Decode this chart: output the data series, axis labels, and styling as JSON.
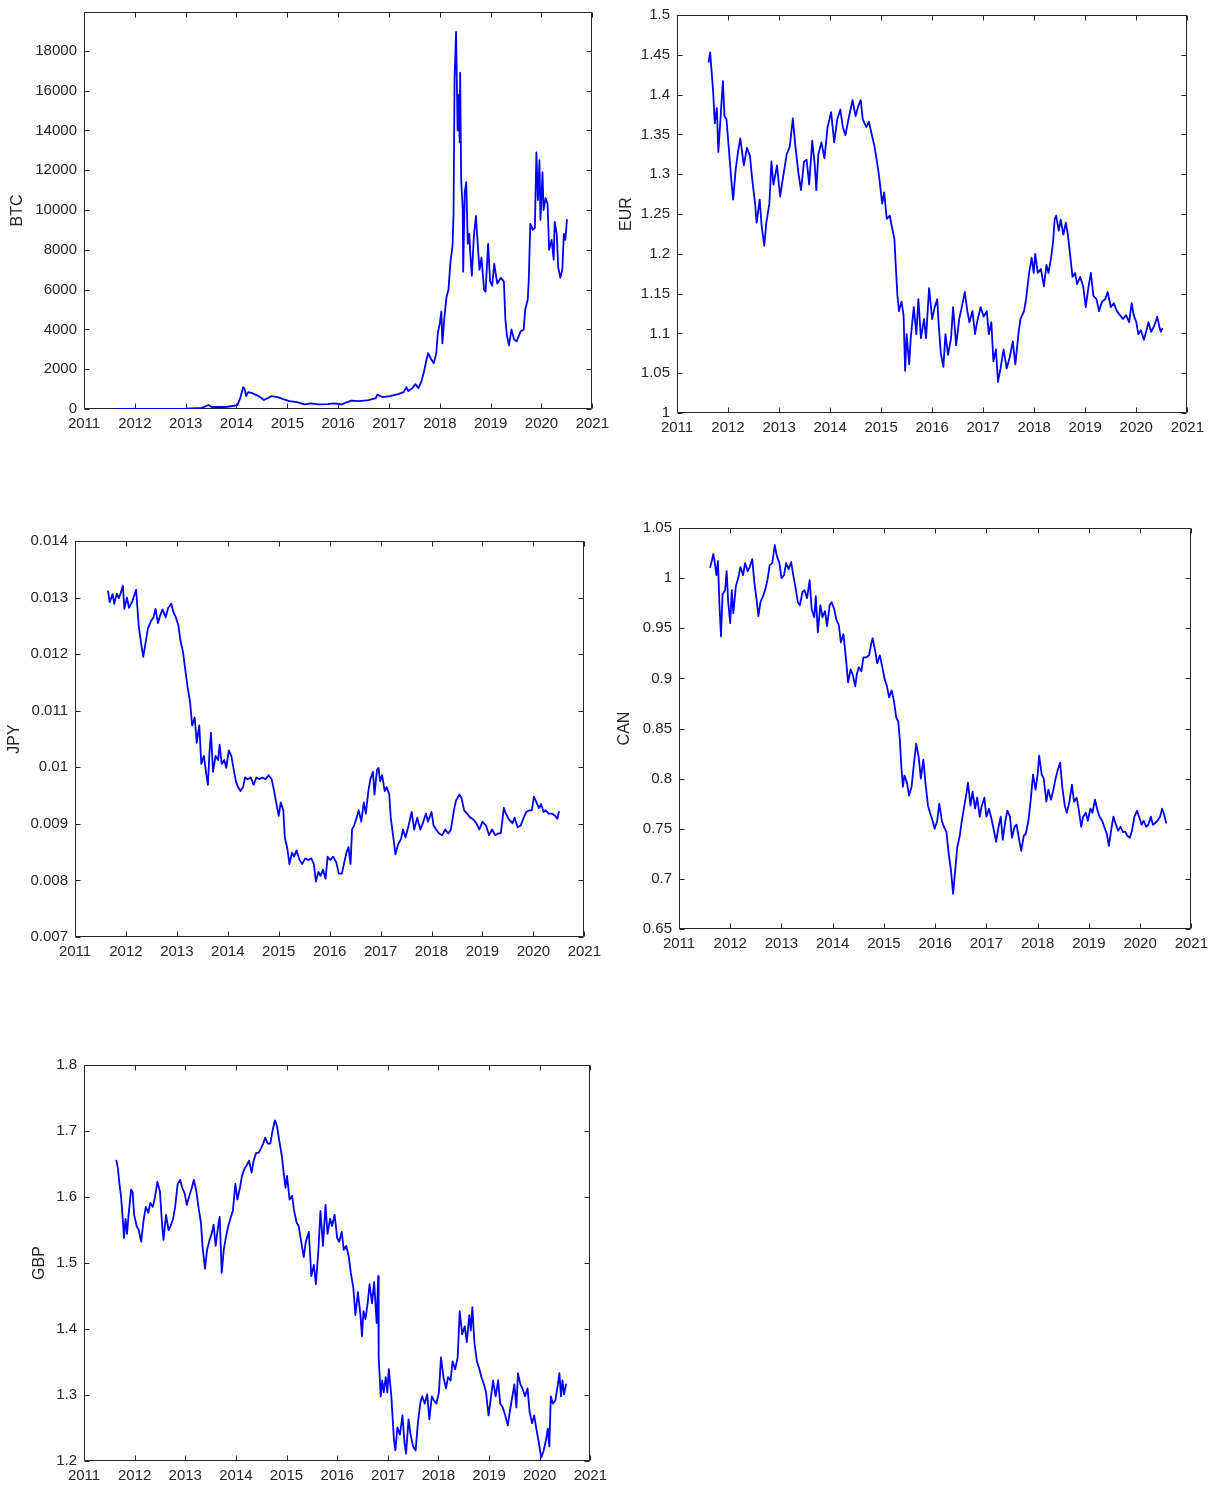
{
  "chart_data": [
    {
      "type": "line",
      "ylabel": "BTC",
      "color": "#0000ff",
      "xlim": [
        2011,
        2021
      ],
      "xticks": [
        2011,
        2012,
        2013,
        2014,
        2015,
        2016,
        2017,
        2018,
        2019,
        2020,
        2021
      ],
      "ylim": [
        0,
        19950
      ],
      "yticks": [
        0,
        2000,
        4000,
        6000,
        8000,
        10000,
        12000,
        14000,
        16000,
        18000
      ],
      "x": [
        2011.66,
        2012.4,
        2013.01,
        2013.32,
        2013.45,
        2013.51,
        2013.78,
        2013.93,
        2014.02,
        2014.08,
        2014.13,
        2014.16,
        2014.19,
        2014.23,
        2014.31,
        2014.39,
        2014.46,
        2014.54,
        2014.62,
        2014.69,
        2014.81,
        2014.92,
        2015.04,
        2015.19,
        2015.34,
        2015.46,
        2015.61,
        2015.8,
        2015.92,
        2016.07,
        2016.18,
        2016.26,
        2016.41,
        2016.6,
        2016.74,
        2016.77,
        2016.87,
        2017.02,
        2017.18,
        2017.29,
        2017.34,
        2017.38,
        2017.46,
        2017.52,
        2017.58,
        2017.64,
        2017.69,
        2017.74,
        2017.77,
        2017.83,
        2017.88,
        2017.93,
        2017.96,
        2018,
        2018.03,
        2018.05,
        2018.09,
        2018.13,
        2018.17,
        2018.21,
        2018.25,
        2018.27,
        2018.29,
        2018.32,
        2018.35,
        2018.37,
        2018.39,
        2018.4,
        2018.42,
        2018.45,
        2018.46,
        2018.49,
        2018.52,
        2018.55,
        2018.58,
        2018.6,
        2018.63,
        2018.67,
        2018.71,
        2018.74,
        2018.78,
        2018.82,
        2018.87,
        2018.9,
        2018.95,
        2018.99,
        2019.03,
        2019.07,
        2019.13,
        2019.2,
        2019.26,
        2019.29,
        2019.32,
        2019.36,
        2019.41,
        2019.46,
        2019.51,
        2019.59,
        2019.65,
        2019.68,
        2019.73,
        2019.75,
        2019.78,
        2019.83,
        2019.87,
        2019.9,
        2019.93,
        2019.96,
        2019.98,
        2020.02,
        2020.04,
        2020.08,
        2020.12,
        2020.15,
        2020.2,
        2020.24,
        2020.26,
        2020.3,
        2020.33,
        2020.37,
        2020.41,
        2020.44,
        2020.47,
        2020.5
      ],
      "values": [
        10,
        10,
        20,
        60,
        200,
        100,
        100,
        150,
        200,
        600,
        1100,
        1000,
        650,
        850,
        800,
        700,
        600,
        450,
        550,
        650,
        600,
        500,
        400,
        350,
        230,
        280,
        230,
        250,
        280,
        230,
        350,
        420,
        400,
        450,
        550,
        720,
        600,
        650,
        750,
        850,
        1100,
        900,
        1050,
        1250,
        1050,
        1400,
        1900,
        2500,
        2800,
        2500,
        2300,
        2800,
        3800,
        4300,
        4900,
        3300,
        4600,
        5600,
        6000,
        7400,
        8200,
        9800,
        16600,
        18950,
        14000,
        15800,
        13400,
        16900,
        11500,
        10100,
        6900,
        10900,
        11400,
        8300,
        8800,
        7800,
        6700,
        8700,
        9700,
        8500,
        7000,
        7600,
        6000,
        5900,
        8300,
        6400,
        6200,
        7300,
        6300,
        6600,
        6400,
        4500,
        3700,
        3200,
        4000,
        3500,
        3400,
        3900,
        4000,
        5000,
        5500,
        6500,
        9300,
        9000,
        9100,
        12900,
        10500,
        12500,
        9500,
        11900,
        10000,
        10600,
        10300,
        8000,
        8500,
        7500,
        9400,
        8800,
        7100,
        6600,
        7000,
        8800,
        8500,
        9500
      ]
    },
    {
      "type": "line",
      "ylabel": "EUR",
      "color": "#0000ff",
      "xlim": [
        2011,
        2021
      ],
      "xticks": [
        2011,
        2012,
        2013,
        2014,
        2015,
        2016,
        2017,
        2018,
        2019,
        2020,
        2021
      ],
      "ylim": [
        1,
        1.5
      ],
      "yticks": [
        1,
        1.05,
        1.1,
        1.15,
        1.2,
        1.25,
        1.3,
        1.35,
        1.4,
        1.45,
        1.5
      ],
      "x": [
        2011.62,
        2011.65,
        2011.71,
        2011.74,
        2011.78,
        2011.81,
        2011.86,
        2011.9,
        2011.93,
        2011.97,
        2012.03,
        2012.06,
        2012.1,
        2012.15,
        2012.2,
        2012.24,
        2012.31,
        2012.37,
        2012.43,
        2012.47,
        2012.53,
        2012.56,
        2012.62,
        2012.66,
        2012.71,
        2012.75,
        2012.81,
        2012.85,
        2012.89,
        2012.96,
        2013.02,
        2013.09,
        2013.15,
        2013.21,
        2013.27,
        2013.32,
        2013.38,
        2013.43,
        2013.49,
        2013.54,
        2013.59,
        2013.65,
        2013.7,
        2013.73,
        2013.77,
        2013.83,
        2013.89,
        2013.95,
        2014.02,
        2014.08,
        2014.14,
        2014.2,
        2014.25,
        2014.3,
        2014.36,
        2014.44,
        2014.5,
        2014.55,
        2014.6,
        2014.64,
        2014.71,
        2014.76,
        2014.82,
        2014.87,
        2014.93,
        2014.97,
        2015.02,
        2015.06,
        2015.11,
        2015.17,
        2015.21,
        2015.26,
        2015.29,
        2015.32,
        2015.35,
        2015.4,
        2015.44,
        2015.47,
        2015.5,
        2015.55,
        2015.58,
        2015.64,
        2015.69,
        2015.73,
        2015.78,
        2015.84,
        2015.88,
        2015.94,
        2016,
        2016.05,
        2016.1,
        2016.13,
        2016.17,
        2016.22,
        2016.26,
        2016.31,
        2016.37,
        2016.41,
        2016.47,
        2016.53,
        2016.58,
        2016.64,
        2016.69,
        2016.73,
        2016.79,
        2016.84,
        2016.88,
        2016.95,
        2017.01,
        2017.07,
        2017.11,
        2017.16,
        2017.2,
        2017.25,
        2017.29,
        2017.34,
        2017.4,
        2017.46,
        2017.52,
        2017.58,
        2017.63,
        2017.69,
        2017.73,
        2017.8,
        2017.84,
        2017.9,
        2017.95,
        2017.99,
        2018.02,
        2018.07,
        2018.13,
        2018.19,
        2018.24,
        2018.28,
        2018.33,
        2018.37,
        2018.4,
        2018.43,
        2018.48,
        2018.52,
        2018.57,
        2018.62,
        2018.66,
        2018.71,
        2018.75,
        2018.8,
        2018.84,
        2018.9,
        2018.96,
        2019.01,
        2019.06,
        2019.11,
        2019.16,
        2019.22,
        2019.27,
        2019.33,
        2019.39,
        2019.44,
        2019.5,
        2019.56,
        2019.62,
        2019.68,
        2019.74,
        2019.8,
        2019.86,
        2019.91,
        2019.95,
        2020,
        2020.04,
        2020.09,
        2020.15,
        2020.2,
        2020.24,
        2020.29,
        2020.35,
        2020.41,
        2020.45,
        2020.48,
        2020.51
      ],
      "values": [
        1.441,
        1.453,
        1.402,
        1.364,
        1.383,
        1.328,
        1.378,
        1.417,
        1.373,
        1.369,
        1.32,
        1.296,
        1.268,
        1.306,
        1.33,
        1.345,
        1.311,
        1.333,
        1.323,
        1.296,
        1.263,
        1.239,
        1.268,
        1.234,
        1.21,
        1.239,
        1.263,
        1.316,
        1.287,
        1.311,
        1.272,
        1.301,
        1.325,
        1.335,
        1.37,
        1.335,
        1.301,
        1.28,
        1.316,
        1.318,
        1.287,
        1.342,
        1.311,
        1.28,
        1.325,
        1.34,
        1.32,
        1.359,
        1.378,
        1.34,
        1.369,
        1.381,
        1.359,
        1.349,
        1.369,
        1.393,
        1.373,
        1.385,
        1.393,
        1.369,
        1.359,
        1.366,
        1.349,
        1.335,
        1.311,
        1.292,
        1.263,
        1.277,
        1.244,
        1.248,
        1.234,
        1.219,
        1.181,
        1.147,
        1.128,
        1.14,
        1.123,
        1.053,
        1.099,
        1.061,
        1.094,
        1.133,
        1.099,
        1.143,
        1.094,
        1.118,
        1.094,
        1.157,
        1.118,
        1.133,
        1.143,
        1.109,
        1.075,
        1.058,
        1.099,
        1.073,
        1.094,
        1.133,
        1.085,
        1.118,
        1.133,
        1.152,
        1.128,
        1.114,
        1.128,
        1.099,
        1.114,
        1.133,
        1.121,
        1.128,
        1.099,
        1.114,
        1.065,
        1.08,
        1.039,
        1.056,
        1.08,
        1.056,
        1.07,
        1.09,
        1.061,
        1.099,
        1.118,
        1.128,
        1.143,
        1.176,
        1.195,
        1.176,
        1.2,
        1.176,
        1.181,
        1.159,
        1.186,
        1.176,
        1.195,
        1.215,
        1.243,
        1.248,
        1.229,
        1.243,
        1.224,
        1.239,
        1.224,
        1.195,
        1.171,
        1.176,
        1.162,
        1.171,
        1.159,
        1.133,
        1.157,
        1.176,
        1.147,
        1.143,
        1.128,
        1.14,
        1.143,
        1.152,
        1.133,
        1.138,
        1.128,
        1.123,
        1.118,
        1.123,
        1.114,
        1.138,
        1.123,
        1.114,
        1.099,
        1.104,
        1.092,
        1.104,
        1.114,
        1.102,
        1.109,
        1.121,
        1.109,
        1.102,
        1.106
      ]
    },
    {
      "type": "line",
      "ylabel": "JPY",
      "color": "#0000ff",
      "xlim": [
        2011,
        2021
      ],
      "xticks": [
        2011,
        2012,
        2013,
        2014,
        2015,
        2016,
        2017,
        2018,
        2019,
        2020,
        2021
      ],
      "ylim": [
        0.007,
        0.014
      ],
      "yticks": [
        0.007,
        0.008,
        0.009,
        0.01,
        0.011,
        0.012,
        0.013,
        0.014
      ],
      "x": [
        2011.65,
        2011.68,
        2011.74,
        2011.77,
        2011.82,
        2011.86,
        2011.89,
        2011.94,
        2011.97,
        2012.02,
        2012.06,
        2012.12,
        2012.17,
        2012.2,
        2012.25,
        2012.29,
        2012.34,
        2012.38,
        2012.43,
        2012.49,
        2012.54,
        2012.58,
        2012.63,
        2012.67,
        2012.72,
        2012.78,
        2012.83,
        2012.89,
        2012.93,
        2012.98,
        2013.03,
        2013.07,
        2013.12,
        2013.16,
        2013.21,
        2013.26,
        2013.3,
        2013.35,
        2013.39,
        2013.44,
        2013.48,
        2013.53,
        2013.58,
        2013.61,
        2013.64,
        2013.67,
        2013.71,
        2013.76,
        2013.81,
        2013.84,
        2013.88,
        2013.93,
        2013.97,
        2014.02,
        2014.07,
        2014.11,
        2014.16,
        2014.2,
        2014.25,
        2014.3,
        2014.34,
        2014.39,
        2014.45,
        2014.51,
        2014.56,
        2014.62,
        2014.68,
        2014.74,
        2014.8,
        2014.86,
        2014.91,
        2014.95,
        2015,
        2015.04,
        2015.09,
        2015.12,
        2015.17,
        2015.21,
        2015.26,
        2015.3,
        2015.35,
        2015.41,
        2015.46,
        2015.52,
        2015.58,
        2015.64,
        2015.69,
        2015.73,
        2015.78,
        2015.82,
        2015.87,
        2015.92,
        2015.96,
        2016.01,
        2016.07,
        2016.13,
        2016.18,
        2016.24,
        2016.28,
        2016.33,
        2016.37,
        2016.41,
        2016.44,
        2016.48,
        2016.53,
        2016.57,
        2016.62,
        2016.67,
        2016.71,
        2016.76,
        2016.8,
        2016.85,
        2016.88,
        2016.93,
        2016.96,
        2016.99,
        2017.03,
        2017.08,
        2017.12,
        2017.17,
        2017.2,
        2017.25,
        2017.29,
        2017.34,
        2017.4,
        2017.44,
        2017.49,
        2017.55,
        2017.61,
        2017.66,
        2017.72,
        2017.78,
        2017.84,
        2017.89,
        2017.93,
        2018,
        2018.04,
        2018.09,
        2018.15,
        2018.21,
        2018.27,
        2018.33,
        2018.38,
        2018.44,
        2018.48,
        2018.55,
        2018.59,
        2018.64,
        2018.7,
        2018.76,
        2018.82,
        2018.88,
        2018.94,
        2019,
        2019.07,
        2019.13,
        2019.19,
        2019.25,
        2019.31,
        2019.36,
        2019.42,
        2019.46,
        2019.52,
        2019.59,
        2019.63,
        2019.69,
        2019.75,
        2019.81,
        2019.86,
        2019.92,
        2019.97,
        2020.01,
        2020.06,
        2020.11,
        2020.15,
        2020.2,
        2020.24,
        2020.3,
        2020.37,
        2020.43,
        2020.47,
        2020.5
      ],
      "values": [
        0.01311,
        0.01292,
        0.01306,
        0.01289,
        0.01307,
        0.01299,
        0.01306,
        0.01321,
        0.0128,
        0.013,
        0.01282,
        0.01292,
        0.01306,
        0.01314,
        0.01251,
        0.01224,
        0.01195,
        0.01217,
        0.01245,
        0.01258,
        0.01265,
        0.0128,
        0.01255,
        0.01268,
        0.01279,
        0.01265,
        0.01282,
        0.01289,
        0.01275,
        0.01265,
        0.01251,
        0.01224,
        0.01204,
        0.01176,
        0.01142,
        0.01115,
        0.01074,
        0.01088,
        0.01043,
        0.01074,
        0.01006,
        0.0102,
        0.00986,
        0.00969,
        0.01026,
        0.01061,
        0.00992,
        0.0102,
        0.01013,
        0.0104,
        0.01006,
        0.01013,
        0.00999,
        0.0103,
        0.0102,
        0.00999,
        0.00975,
        0.00965,
        0.00958,
        0.00965,
        0.00982,
        0.00979,
        0.00982,
        0.00969,
        0.00982,
        0.00979,
        0.00982,
        0.00979,
        0.00986,
        0.00979,
        0.00958,
        0.00938,
        0.00914,
        0.00938,
        0.00924,
        0.00876,
        0.00856,
        0.00829,
        0.00849,
        0.00842,
        0.00853,
        0.00836,
        0.00829,
        0.00839,
        0.00836,
        0.00839,
        0.00829,
        0.00798,
        0.00815,
        0.00808,
        0.00819,
        0.00803,
        0.00842,
        0.00836,
        0.00842,
        0.00832,
        0.00812,
        0.00812,
        0.00829,
        0.00849,
        0.00859,
        0.00829,
        0.0089,
        0.00897,
        0.00911,
        0.00924,
        0.00904,
        0.00938,
        0.00918,
        0.00958,
        0.00979,
        0.00992,
        0.00952,
        0.00996,
        0.00999,
        0.00975,
        0.00986,
        0.00958,
        0.00965,
        0.00952,
        0.00911,
        0.00876,
        0.00846,
        0.00863,
        0.00873,
        0.0089,
        0.00876,
        0.00897,
        0.00921,
        0.0089,
        0.00911,
        0.0089,
        0.00904,
        0.00918,
        0.00904,
        0.00921,
        0.00897,
        0.0089,
        0.00883,
        0.0088,
        0.0089,
        0.00883,
        0.0089,
        0.00924,
        0.00941,
        0.00952,
        0.00945,
        0.00924,
        0.00918,
        0.00911,
        0.00908,
        0.00901,
        0.0089,
        0.00904,
        0.00897,
        0.0088,
        0.0089,
        0.0088,
        0.00883,
        0.00883,
        0.00928,
        0.00918,
        0.00908,
        0.00901,
        0.00911,
        0.00894,
        0.00897,
        0.00911,
        0.00921,
        0.00924,
        0.00924,
        0.00948,
        0.00938,
        0.00928,
        0.00935,
        0.00921,
        0.00924,
        0.00918,
        0.00918,
        0.00914,
        0.00909,
        0.00921
      ]
    },
    {
      "type": "line",
      "ylabel": "CAN",
      "color": "#0000ff",
      "xlim": [
        2011,
        2021
      ],
      "xticks": [
        2011,
        2012,
        2013,
        2014,
        2015,
        2016,
        2017,
        2018,
        2019,
        2020,
        2021
      ],
      "ylim": [
        0.65,
        1.05
      ],
      "yticks": [
        0.65,
        0.7,
        0.75,
        0.8,
        0.85,
        0.9,
        0.95,
        1,
        1.05
      ],
      "x": [
        2011.61,
        2011.64,
        2011.67,
        2011.7,
        2011.73,
        2011.76,
        2011.79,
        2011.82,
        2011.85,
        2011.9,
        2011.93,
        2011.96,
        2012,
        2012.03,
        2012.06,
        2012.11,
        2012.16,
        2012.2,
        2012.25,
        2012.29,
        2012.34,
        2012.38,
        2012.43,
        2012.47,
        2012.52,
        2012.55,
        2012.59,
        2012.64,
        2012.68,
        2012.73,
        2012.77,
        2012.82,
        2012.87,
        2012.91,
        2012.96,
        2013,
        2013.05,
        2013.09,
        2013.14,
        2013.19,
        2013.23,
        2013.27,
        2013.32,
        2013.36,
        2013.41,
        2013.45,
        2013.5,
        2013.55,
        2013.59,
        2013.64,
        2013.67,
        2013.71,
        2013.76,
        2013.8,
        2013.85,
        2013.89,
        2013.94,
        2013.98,
        2014.03,
        2014.07,
        2014.12,
        2014.16,
        2014.21,
        2014.26,
        2014.3,
        2014.35,
        2014.39,
        2014.44,
        2014.47,
        2014.51,
        2014.56,
        2014.6,
        2014.66,
        2014.71,
        2014.75,
        2014.78,
        2014.83,
        2014.87,
        2014.92,
        2014.97,
        2015.01,
        2015.06,
        2015.1,
        2015.15,
        2015.19,
        2015.24,
        2015.28,
        2015.31,
        2015.34,
        2015.37,
        2015.4,
        2015.45,
        2015.49,
        2015.54,
        2015.58,
        2015.63,
        2015.68,
        2015.72,
        2015.77,
        2015.81,
        2015.86,
        2015.9,
        2015.95,
        2015.99,
        2016.04,
        2016.08,
        2016.13,
        2016.17,
        2016.22,
        2016.26,
        2016.31,
        2016.35,
        2016.39,
        2016.43,
        2016.48,
        2016.52,
        2016.57,
        2016.61,
        2016.64,
        2016.69,
        2016.73,
        2016.78,
        2016.82,
        2016.87,
        2016.91,
        2016.96,
        2017,
        2017.05,
        2017.09,
        2017.14,
        2017.19,
        2017.23,
        2017.28,
        2017.32,
        2017.37,
        2017.41,
        2017.46,
        2017.5,
        2017.55,
        2017.59,
        2017.64,
        2017.68,
        2017.73,
        2017.77,
        2017.82,
        2017.87,
        2017.91,
        2017.96,
        2018,
        2018.03,
        2018.08,
        2018.12,
        2018.17,
        2018.21,
        2018.26,
        2018.3,
        2018.35,
        2018.39,
        2018.44,
        2018.48,
        2018.53,
        2018.57,
        2018.62,
        2018.67,
        2018.71,
        2018.76,
        2018.8,
        2018.85,
        2018.89,
        2018.94,
        2018.98,
        2019.03,
        2019.07,
        2019.12,
        2019.17,
        2019.21,
        2019.26,
        2019.3,
        2019.35,
        2019.39,
        2019.44,
        2019.48,
        2019.53,
        2019.57,
        2019.62,
        2019.66,
        2019.71,
        2019.75,
        2019.8,
        2019.84,
        2019.89,
        2019.94,
        2019.98,
        2020.03,
        2020.07,
        2020.12,
        2020.16,
        2020.21,
        2020.25,
        2020.3,
        2020.34,
        2020.39,
        2020.43,
        2020.46,
        2020.51
      ],
      "values": [
        1.011,
        1.017,
        1.024,
        1.015,
        1.003,
        1.017,
        0.973,
        0.942,
        0.984,
        0.988,
        1.007,
        0.976,
        0.955,
        0.988,
        0.965,
        0.992,
        1.001,
        1.011,
        1.003,
        1.015,
        1.007,
        1.011,
        1.019,
        0.996,
        0.976,
        0.962,
        0.976,
        0.982,
        0.988,
        0.999,
        1.013,
        1.015,
        1.033,
        1.022,
        1.015,
        1,
        1.003,
        1.015,
        1.009,
        1.016,
        1.003,
        0.992,
        0.976,
        0.973,
        0.986,
        0.988,
        0.98,
        0.998,
        0.969,
        0.961,
        0.982,
        0.946,
        0.973,
        0.961,
        0.967,
        0.952,
        0.973,
        0.976,
        0.969,
        0.959,
        0.953,
        0.936,
        0.944,
        0.919,
        0.896,
        0.909,
        0.904,
        0.892,
        0.904,
        0.911,
        0.907,
        0.921,
        0.921,
        0.923,
        0.934,
        0.94,
        0.927,
        0.915,
        0.923,
        0.911,
        0.9,
        0.892,
        0.881,
        0.888,
        0.879,
        0.861,
        0.857,
        0.839,
        0.812,
        0.792,
        0.803,
        0.796,
        0.783,
        0.792,
        0.812,
        0.835,
        0.821,
        0.8,
        0.819,
        0.796,
        0.773,
        0.766,
        0.758,
        0.75,
        0.758,
        0.775,
        0.758,
        0.752,
        0.747,
        0.727,
        0.708,
        0.685,
        0.708,
        0.731,
        0.743,
        0.758,
        0.773,
        0.785,
        0.796,
        0.773,
        0.787,
        0.77,
        0.781,
        0.762,
        0.773,
        0.781,
        0.762,
        0.77,
        0.762,
        0.75,
        0.737,
        0.75,
        0.762,
        0.739,
        0.758,
        0.768,
        0.762,
        0.741,
        0.752,
        0.754,
        0.739,
        0.728,
        0.743,
        0.745,
        0.758,
        0.781,
        0.804,
        0.789,
        0.804,
        0.823,
        0.804,
        0.8,
        0.777,
        0.789,
        0.779,
        0.787,
        0.8,
        0.808,
        0.816,
        0.792,
        0.773,
        0.766,
        0.777,
        0.794,
        0.777,
        0.781,
        0.77,
        0.752,
        0.762,
        0.766,
        0.758,
        0.77,
        0.766,
        0.779,
        0.768,
        0.762,
        0.758,
        0.752,
        0.745,
        0.733,
        0.75,
        0.762,
        0.754,
        0.748,
        0.752,
        0.747,
        0.747,
        0.743,
        0.741,
        0.748,
        0.762,
        0.768,
        0.762,
        0.754,
        0.758,
        0.752,
        0.754,
        0.762,
        0.754,
        0.756,
        0.758,
        0.762,
        0.77,
        0.766,
        0.756
      ]
    },
    {
      "type": "line",
      "ylabel": "GBP",
      "color": "#0000ff",
      "xlim": [
        2011,
        2021
      ],
      "xticks": [
        2011,
        2012,
        2013,
        2014,
        2015,
        2016,
        2017,
        2018,
        2019,
        2020,
        2021
      ],
      "ylim": [
        1.2,
        1.8
      ],
      "yticks": [
        1.2,
        1.3,
        1.4,
        1.5,
        1.6,
        1.7,
        1.8
      ],
      "x": [
        2011.64,
        2011.67,
        2011.7,
        2011.73,
        2011.76,
        2011.79,
        2011.82,
        2011.85,
        2011.88,
        2011.93,
        2011.96,
        2011.99,
        2012.04,
        2012.08,
        2012.13,
        2012.17,
        2012.22,
        2012.27,
        2012.31,
        2012.36,
        2012.4,
        2012.45,
        2012.5,
        2012.54,
        2012.57,
        2012.62,
        2012.67,
        2012.71,
        2012.76,
        2012.8,
        2012.85,
        2012.9,
        2012.94,
        2012.99,
        2013.03,
        2013.08,
        2013.13,
        2013.17,
        2013.22,
        2013.26,
        2013.31,
        2013.34,
        2013.39,
        2013.43,
        2013.48,
        2013.52,
        2013.56,
        2013.6,
        2013.65,
        2013.68,
        2013.72,
        2013.76,
        2013.8,
        2013.85,
        2013.89,
        2013.94,
        2013.99,
        2014.03,
        2014.08,
        2014.12,
        2014.17,
        2014.22,
        2014.26,
        2014.31,
        2014.35,
        2014.4,
        2014.45,
        2014.49,
        2014.54,
        2014.58,
        2014.63,
        2014.68,
        2014.72,
        2014.77,
        2014.81,
        2014.86,
        2014.91,
        2014.95,
        2014.98,
        2015.01,
        2015.06,
        2015.11,
        2015.15,
        2015.2,
        2015.24,
        2015.29,
        2015.34,
        2015.38,
        2015.44,
        2015.49,
        2015.54,
        2015.58,
        2015.63,
        2015.67,
        2015.72,
        2015.77,
        2015.81,
        2015.86,
        2015.9,
        2015.95,
        2016,
        2016.04,
        2016.09,
        2016.13,
        2016.18,
        2016.23,
        2016.27,
        2016.32,
        2016.36,
        2016.41,
        2016.46,
        2016.49,
        2016.52,
        2016.56,
        2016.61,
        2016.64,
        2016.69,
        2016.73,
        2016.78,
        2016.81,
        2016.82,
        2016.86,
        2016.89,
        2016.92,
        2016.96,
        2016.99,
        2017.02,
        2017.07,
        2017.12,
        2017.15,
        2017.19,
        2017.24,
        2017.29,
        2017.33,
        2017.36,
        2017.41,
        2017.45,
        2017.5,
        2017.55,
        2017.59,
        2017.64,
        2017.68,
        2017.73,
        2017.78,
        2017.82,
        2017.87,
        2017.91,
        2017.96,
        2018.01,
        2018.05,
        2018.1,
        2018.15,
        2018.19,
        2018.24,
        2018.28,
        2018.33,
        2018.38,
        2018.42,
        2018.47,
        2018.52,
        2018.56,
        2018.61,
        2018.64,
        2018.67,
        2018.71,
        2018.76,
        2018.81,
        2018.85,
        2018.9,
        2018.94,
        2018.99,
        2019.04,
        2019.08,
        2019.13,
        2019.18,
        2019.22,
        2019.27,
        2019.32,
        2019.37,
        2019.41,
        2019.46,
        2019.5,
        2019.54,
        2019.57,
        2019.62,
        2019.66,
        2019.71,
        2019.76,
        2019.8,
        2019.85,
        2019.89,
        2019.94,
        2019.99,
        2020.03,
        2020.08,
        2020.13,
        2020.16,
        2020.19,
        2020.22,
        2020.26,
        2020.31,
        2020.36,
        2020.39,
        2020.42,
        2020.45,
        2020.48,
        2020.52
      ],
      "values": [
        1.655,
        1.643,
        1.62,
        1.602,
        1.573,
        1.538,
        1.567,
        1.544,
        1.573,
        1.611,
        1.608,
        1.573,
        1.556,
        1.55,
        1.532,
        1.561,
        1.585,
        1.576,
        1.591,
        1.585,
        1.599,
        1.623,
        1.608,
        1.561,
        1.535,
        1.573,
        1.55,
        1.556,
        1.567,
        1.585,
        1.62,
        1.626,
        1.614,
        1.605,
        1.588,
        1.602,
        1.614,
        1.626,
        1.608,
        1.585,
        1.561,
        1.526,
        1.491,
        1.52,
        1.535,
        1.544,
        1.558,
        1.526,
        1.556,
        1.57,
        1.485,
        1.52,
        1.538,
        1.556,
        1.567,
        1.579,
        1.62,
        1.596,
        1.614,
        1.632,
        1.643,
        1.649,
        1.655,
        1.637,
        1.655,
        1.667,
        1.667,
        1.673,
        1.681,
        1.69,
        1.681,
        1.681,
        1.699,
        1.716,
        1.708,
        1.684,
        1.661,
        1.632,
        1.614,
        1.632,
        1.596,
        1.602,
        1.579,
        1.561,
        1.556,
        1.532,
        1.509,
        1.532,
        1.547,
        1.48,
        1.497,
        1.468,
        1.52,
        1.579,
        1.526,
        1.588,
        1.544,
        1.567,
        1.556,
        1.573,
        1.538,
        1.532,
        1.547,
        1.52,
        1.526,
        1.509,
        1.485,
        1.462,
        1.421,
        1.456,
        1.421,
        1.389,
        1.427,
        1.415,
        1.444,
        1.468,
        1.439,
        1.471,
        1.409,
        1.48,
        1.357,
        1.298,
        1.322,
        1.304,
        1.327,
        1.304,
        1.339,
        1.298,
        1.234,
        1.216,
        1.251,
        1.24,
        1.269,
        1.228,
        1.211,
        1.263,
        1.24,
        1.222,
        1.216,
        1.254,
        1.287,
        1.298,
        1.287,
        1.301,
        1.263,
        1.298,
        1.292,
        1.287,
        1.304,
        1.357,
        1.327,
        1.31,
        1.327,
        1.322,
        1.351,
        1.339,
        1.357,
        1.427,
        1.392,
        1.404,
        1.38,
        1.421,
        1.398,
        1.433,
        1.38,
        1.351,
        1.339,
        1.327,
        1.316,
        1.304,
        1.269,
        1.298,
        1.322,
        1.298,
        1.322,
        1.287,
        1.281,
        1.269,
        1.254,
        1.275,
        1.298,
        1.316,
        1.281,
        1.333,
        1.316,
        1.31,
        1.298,
        1.31,
        1.275,
        1.257,
        1.269,
        1.246,
        1.225,
        1.205,
        1.216,
        1.234,
        1.249,
        1.222,
        1.298,
        1.287,
        1.292,
        1.316,
        1.333,
        1.298,
        1.322,
        1.301,
        1.316
      ]
    }
  ]
}
